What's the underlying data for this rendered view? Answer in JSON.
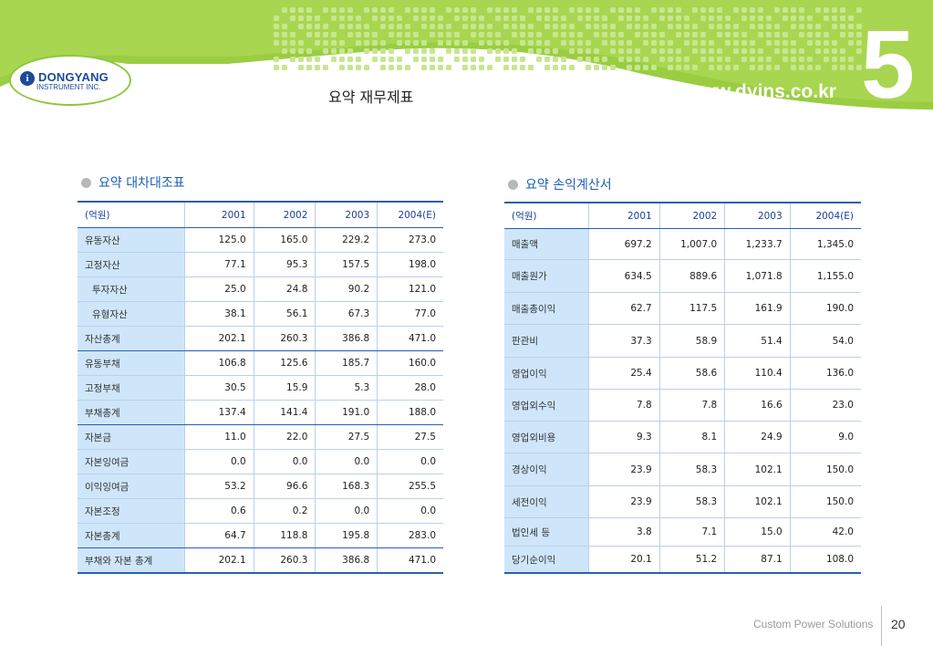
{
  "header": {
    "logo_name": "DONGYANG",
    "logo_sub": "INSTRUMENT INC.",
    "title": "요약 재무제표",
    "url": "www.dyins.co.kr",
    "chapter": "5",
    "brand_color": "#8fc63d"
  },
  "balance": {
    "title": "요약 대차대조표",
    "columns": [
      "(억원)",
      "2001",
      "2002",
      "2003",
      "2004(E)"
    ],
    "rows": [
      {
        "label": "유동자산",
        "v": [
          "125.0",
          "165.0",
          "229.2",
          "273.0"
        ]
      },
      {
        "label": "고정자산",
        "v": [
          "77.1",
          "95.3",
          "157.5",
          "198.0"
        ]
      },
      {
        "label": "투자자산",
        "v": [
          "25.0",
          "24.8",
          "90.2",
          "121.0"
        ]
      },
      {
        "label": "유형자산",
        "v": [
          "38.1",
          "56.1",
          "67.3",
          "77.0"
        ]
      },
      {
        "label": "자산총계",
        "v": [
          "202.1",
          "260.3",
          "386.8",
          "471.0"
        ]
      },
      {
        "label": "유동부채",
        "v": [
          "106.8",
          "125.6",
          "185.7",
          "160.0"
        ]
      },
      {
        "label": "고정부채",
        "v": [
          "30.5",
          "15.9",
          "5.3",
          "28.0"
        ]
      },
      {
        "label": "부채총계",
        "v": [
          "137.4",
          "141.4",
          "191.0",
          "188.0"
        ]
      },
      {
        "label": "자본금",
        "v": [
          "11.0",
          "22.0",
          "27.5",
          "27.5"
        ]
      },
      {
        "label": "자본잉여금",
        "v": [
          "0.0",
          "0.0",
          "0.0",
          "0.0"
        ]
      },
      {
        "label": "이익잉여금",
        "v": [
          "53.2",
          "96.6",
          "168.3",
          "255.5"
        ]
      },
      {
        "label": "자본조정",
        "v": [
          "0.6",
          "0.2",
          "0.0",
          "0.0"
        ]
      },
      {
        "label": "자본총계",
        "v": [
          "64.7",
          "118.8",
          "195.8",
          "283.0"
        ]
      },
      {
        "label": "부채와 자본 총계",
        "v": [
          "202.1",
          "260.3",
          "386.8",
          "471.0"
        ]
      }
    ]
  },
  "income": {
    "title": "요약 손익계산서",
    "columns": [
      "(억원)",
      "2001",
      "2002",
      "2003",
      "2004(E)"
    ],
    "rows": [
      {
        "label": "매출액",
        "v": [
          "697.2",
          "1,007.0",
          "1,233.7",
          "1,345.0"
        ]
      },
      {
        "label": "매출원가",
        "v": [
          "634.5",
          "889.6",
          "1,071.8",
          "1,155.0"
        ]
      },
      {
        "label": "매출총이익",
        "v": [
          "62.7",
          "117.5",
          "161.9",
          "190.0"
        ]
      },
      {
        "label": "판관비",
        "v": [
          "37.3",
          "58.9",
          "51.4",
          "54.0"
        ]
      },
      {
        "label": "영업이익",
        "v": [
          "25.4",
          "58.6",
          "110.4",
          "136.0"
        ]
      },
      {
        "label": "영업외수익",
        "v": [
          "7.8",
          "7.8",
          "16.6",
          "23.0"
        ]
      },
      {
        "label": "영업외비용",
        "v": [
          "9.3",
          "8.1",
          "24.9",
          "9.0"
        ]
      },
      {
        "label": "경상이익",
        "v": [
          "23.9",
          "58.3",
          "102.1",
          "150.0"
        ]
      },
      {
        "label": "세전이익",
        "v": [
          "23.9",
          "58.3",
          "102.1",
          "150.0"
        ]
      },
      {
        "label": "법인세 등",
        "v": [
          "3.8",
          "7.1",
          "15.0",
          "42.0"
        ]
      },
      {
        "label": "당기순이익",
        "v": [
          "20.1",
          "51.2",
          "87.1",
          "108.0"
        ]
      }
    ]
  },
  "footer": {
    "tagline": "Custom Power Solutions",
    "page_number": "20"
  }
}
